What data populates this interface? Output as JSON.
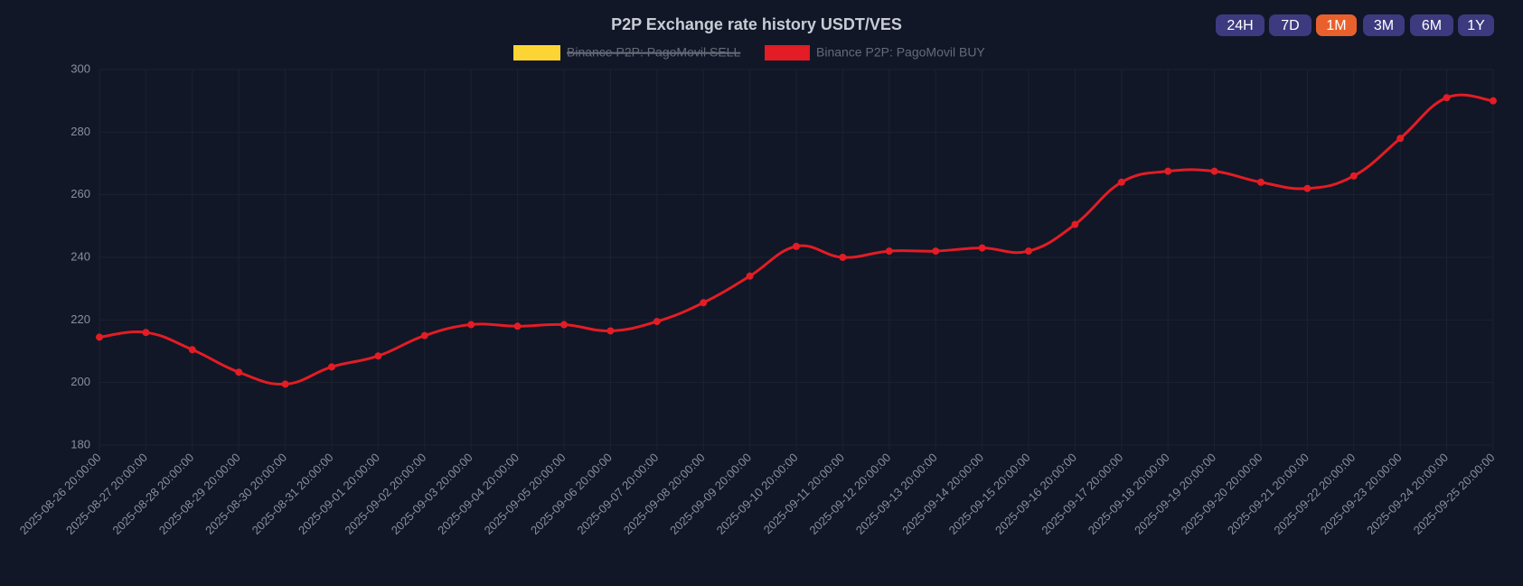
{
  "chart_data": {
    "type": "line",
    "title": "P2P Exchange rate history USDT/VES",
    "range_buttons": [
      "24H",
      "7D",
      "1M",
      "3M",
      "6M",
      "1Y"
    ],
    "active_range": "1M",
    "hidden_series": [
      {
        "name": "Binance P2P: PagoMovil SELL",
        "color": "#fcd535"
      }
    ],
    "x": [
      "2025-08-26 20:00:00",
      "2025-08-27 20:00:00",
      "2025-08-28 20:00:00",
      "2025-08-29 20:00:00",
      "2025-08-30 20:00:00",
      "2025-08-31 20:00:00",
      "2025-09-01 20:00:00",
      "2025-09-02 20:00:00",
      "2025-09-03 20:00:00",
      "2025-09-04 20:00:00",
      "2025-09-05 20:00:00",
      "2025-09-06 20:00:00",
      "2025-09-07 20:00:00",
      "2025-09-08 20:00:00",
      "2025-09-09 20:00:00",
      "2025-09-10 20:00:00",
      "2025-09-11 20:00:00",
      "2025-09-12 20:00:00",
      "2025-09-13 20:00:00",
      "2025-09-14 20:00:00",
      "2025-09-15 20:00:00",
      "2025-09-16 20:00:00",
      "2025-09-17 20:00:00",
      "2025-09-18 20:00:00",
      "2025-09-19 20:00:00",
      "2025-09-20 20:00:00",
      "2025-09-21 20:00:00",
      "2025-09-22 20:00:00",
      "2025-09-23 20:00:00",
      "2025-09-24 20:00:00",
      "2025-09-25 20:00:00"
    ],
    "series": [
      {
        "name": "Binance P2P: PagoMovil BUY",
        "color": "#e31c25",
        "values": [
          214.5,
          216,
          210.5,
          203.3,
          199.5,
          205,
          208.5,
          215,
          218.5,
          218,
          218.5,
          216.5,
          219.5,
          225.5,
          234,
          243.5,
          240,
          242,
          242,
          243,
          242,
          250.5,
          264,
          267.5,
          267.5,
          264,
          262,
          266,
          278,
          291,
          290
        ]
      }
    ],
    "ylim": [
      180,
      300
    ],
    "yticks": [
      180,
      200,
      220,
      240,
      260,
      280,
      300
    ],
    "grid": true
  }
}
